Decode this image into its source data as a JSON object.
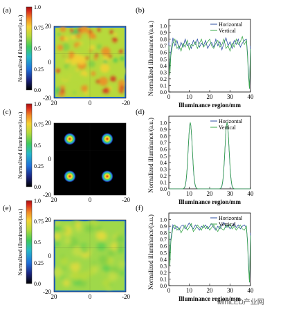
{
  "watermark": "MiniLED产业网",
  "chart_data": [
    {
      "panel": "(a)",
      "type": "heatmap",
      "ylabel": "Normalized illuminance/(a.u.)",
      "colorbar_ticks": [
        "0.0",
        "0.25",
        "0.5",
        "0.75",
        "1.0"
      ],
      "x_ticks": [
        "20",
        "0",
        "-20"
      ],
      "y_ticks": [
        "20",
        "0",
        "-20"
      ],
      "pattern": "uniform-noisy",
      "colors": [
        "#000000",
        "#1f2fa0",
        "#1f8fe0",
        "#3fc878",
        "#b8d640",
        "#f2c232",
        "#e8401e",
        "#b01010"
      ]
    },
    {
      "panel": "(b)",
      "type": "line",
      "xlabel": "Illuminance region/mm",
      "ylabel": "Normalized illuminance/(a.u.)",
      "xlim": [
        0,
        40
      ],
      "ylim": [
        0,
        1.1
      ],
      "x_ticks": [
        "0",
        "10",
        "20",
        "30",
        "40"
      ],
      "y_ticks": [
        "0.0",
        "0.1",
        "0.2",
        "0.3",
        "0.4",
        "0.5",
        "0.6",
        "0.7",
        "0.8",
        "0.9",
        "1.0"
      ],
      "legend": "top-right",
      "series": [
        {
          "name": "Horizontal",
          "color": "#2b4ea2",
          "x": [
            0,
            0.5,
            1,
            2,
            3,
            4,
            5,
            6,
            7,
            8,
            9,
            10,
            11,
            12,
            13,
            14,
            15,
            16,
            17,
            18,
            19,
            20,
            21,
            22,
            23,
            24,
            25,
            26,
            27,
            28,
            29,
            30,
            31,
            32,
            33,
            34,
            35,
            36,
            37,
            38,
            38.5,
            39,
            39.5,
            40
          ],
          "y": [
            0.75,
            0.3,
            0.6,
            0.82,
            0.7,
            0.78,
            0.65,
            0.75,
            0.68,
            0.8,
            0.7,
            0.74,
            0.66,
            0.78,
            0.72,
            0.8,
            0.68,
            0.74,
            0.7,
            0.78,
            0.66,
            0.72,
            0.75,
            0.68,
            0.8,
            0.7,
            0.76,
            0.64,
            0.74,
            0.82,
            0.7,
            0.76,
            0.66,
            0.78,
            0.72,
            0.8,
            0.68,
            0.74,
            0.78,
            0.8,
            0.6,
            0.3,
            0.05,
            0.7
          ]
        },
        {
          "name": "Vertical",
          "color": "#3aa84a",
          "x": [
            0,
            0.5,
            1,
            2,
            3,
            4,
            5,
            6,
            7,
            8,
            9,
            10,
            11,
            12,
            13,
            14,
            15,
            16,
            17,
            18,
            19,
            20,
            21,
            22,
            23,
            24,
            25,
            26,
            27,
            28,
            29,
            30,
            31,
            32,
            33,
            34,
            35,
            36,
            37,
            38,
            38.5,
            39,
            39.5,
            40
          ],
          "y": [
            0.7,
            0.25,
            0.55,
            0.74,
            0.8,
            0.66,
            0.7,
            0.62,
            0.74,
            0.68,
            0.78,
            0.64,
            0.72,
            0.7,
            0.76,
            0.66,
            0.74,
            0.8,
            0.68,
            0.72,
            0.76,
            0.8,
            0.7,
            0.66,
            0.74,
            0.78,
            0.68,
            0.72,
            0.8,
            0.66,
            0.7,
            0.62,
            0.74,
            0.68,
            0.8,
            0.72,
            0.76,
            0.84,
            0.72,
            0.78,
            0.55,
            0.25,
            0.05,
            0.65
          ]
        }
      ]
    },
    {
      "panel": "(c)",
      "type": "heatmap",
      "ylabel": "Normalized illuminance/(a.u.)",
      "colorbar_ticks": [
        "0.0",
        "0.25",
        "0.5",
        "0.75",
        "1.0"
      ],
      "x_ticks": [
        "20",
        "0",
        "-20"
      ],
      "y_ticks": [
        "20",
        "0",
        "-20"
      ],
      "pattern": "four-spots"
    },
    {
      "panel": "(d)",
      "type": "line",
      "xlabel": "Illuminance region/mm",
      "ylabel": "Normalized illuminance/(a.u.)",
      "xlim": [
        0,
        40
      ],
      "ylim": [
        0,
        1.1
      ],
      "x_ticks": [
        "0",
        "10",
        "20",
        "30",
        "40"
      ],
      "y_ticks": [
        "0.0",
        "0.1",
        "0.2",
        "0.3",
        "0.4",
        "0.5",
        "0.6",
        "0.7",
        "0.8",
        "0.9",
        "1.0"
      ],
      "legend": "top-right",
      "peaks": [
        10.5,
        28.5
      ],
      "peak_width": 1.4,
      "series": [
        {
          "name": "Horizontal",
          "color": "#2b4ea2"
        },
        {
          "name": "Vertical",
          "color": "#3aa84a"
        }
      ]
    },
    {
      "panel": "(e)",
      "type": "heatmap",
      "ylabel": "Normalized illuminance/(a.u.)",
      "colorbar_ticks": [
        "0.0",
        "0.25",
        "0.5",
        "0.75",
        "1.0"
      ],
      "x_ticks": [
        "20",
        "0",
        "-20"
      ],
      "y_ticks": [
        "20",
        "0",
        "-20"
      ],
      "pattern": "uniform-smooth"
    },
    {
      "panel": "(f)",
      "type": "line",
      "xlabel": "Illuminance region/mm",
      "ylabel": "Normalized illuminance/(a.u.)",
      "xlim": [
        0,
        40
      ],
      "ylim": [
        0,
        1.1
      ],
      "x_ticks": [
        "0",
        "10",
        "20",
        "30",
        "40"
      ],
      "y_ticks": [
        "0.0",
        "0.1",
        "0.2",
        "0.3",
        "0.4",
        "0.5",
        "0.6",
        "0.7",
        "0.8",
        "0.9",
        "1.0"
      ],
      "legend": "top-right",
      "series": [
        {
          "name": "Horizontal",
          "color": "#2b4ea2",
          "x": [
            0,
            0.5,
            1,
            2,
            3,
            4,
            5,
            6,
            7,
            8,
            9,
            10,
            11,
            12,
            13,
            14,
            15,
            16,
            17,
            18,
            19,
            20,
            21,
            22,
            23,
            24,
            25,
            26,
            27,
            28,
            29,
            30,
            31,
            32,
            33,
            34,
            35,
            36,
            37,
            38,
            38.5,
            39,
            39.5,
            40
          ],
          "y": [
            0.88,
            0.35,
            0.7,
            0.92,
            0.86,
            0.9,
            0.84,
            0.9,
            0.92,
            0.86,
            0.9,
            0.95,
            0.9,
            0.86,
            0.92,
            0.88,
            0.84,
            0.9,
            0.88,
            0.92,
            0.86,
            0.9,
            0.94,
            0.88,
            0.84,
            0.9,
            0.86,
            0.92,
            0.96,
            0.88,
            0.92,
            0.86,
            0.9,
            0.94,
            0.88,
            0.92,
            0.86,
            0.9,
            0.92,
            0.88,
            0.7,
            0.35,
            0.05,
            0.8
          ]
        },
        {
          "name": "Vertical",
          "color": "#3aa84a",
          "x": [
            0,
            0.5,
            1,
            2,
            3,
            4,
            5,
            6,
            7,
            8,
            9,
            10,
            11,
            12,
            13,
            14,
            15,
            16,
            17,
            18,
            19,
            20,
            21,
            22,
            23,
            24,
            25,
            26,
            27,
            28,
            29,
            30,
            31,
            32,
            33,
            34,
            35,
            36,
            37,
            38,
            38.5,
            39,
            39.5,
            40
          ],
          "y": [
            0.84,
            0.3,
            0.66,
            0.88,
            0.92,
            0.84,
            0.88,
            0.8,
            0.86,
            0.92,
            0.84,
            0.88,
            0.94,
            0.82,
            0.86,
            0.92,
            0.88,
            0.84,
            0.92,
            0.86,
            0.9,
            0.84,
            0.88,
            0.92,
            0.86,
            0.82,
            0.9,
            0.86,
            0.84,
            0.92,
            0.88,
            0.94,
            0.86,
            0.9,
            0.84,
            0.88,
            0.92,
            0.86,
            0.84,
            0.9,
            0.66,
            0.3,
            0.05,
            0.76
          ]
        }
      ]
    }
  ]
}
